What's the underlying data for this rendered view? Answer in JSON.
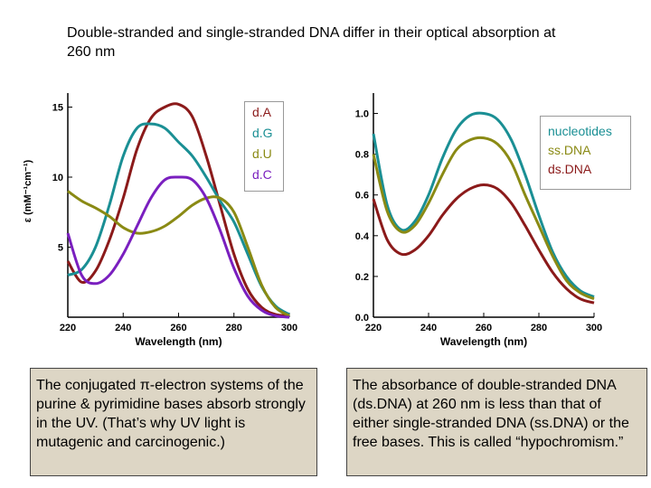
{
  "title": "Double-stranded and single-stranded DNA differ in their optical absorption at 260 nm",
  "chart_data": [
    {
      "type": "line",
      "xlabel": "Wavelength (nm)",
      "ylabel": "ε (mM⁻¹cm⁻¹)",
      "xlim": [
        220,
        300
      ],
      "ylim": [
        0,
        16
      ],
      "xticks": [
        "220",
        "240",
        "260",
        "280",
        "300"
      ],
      "yticks": [
        "5",
        "10",
        "15"
      ],
      "series": [
        {
          "name": "dA",
          "color": "#8b1a1a",
          "x": [
            220,
            225,
            230,
            235,
            240,
            245,
            250,
            255,
            260,
            265,
            270,
            275,
            280,
            285,
            290,
            295,
            300
          ],
          "y": [
            4,
            2.5,
            3.3,
            5.5,
            8.5,
            12,
            14.2,
            15,
            15.2,
            14.3,
            11.5,
            8,
            4.5,
            2,
            0.7,
            0.2,
            0.1
          ]
        },
        {
          "name": "dG",
          "color": "#1a8f94",
          "x": [
            220,
            225,
            230,
            235,
            240,
            245,
            250,
            255,
            260,
            265,
            270,
            275,
            280,
            285,
            290,
            295,
            300
          ],
          "y": [
            3,
            3.4,
            5,
            8,
            11.5,
            13.5,
            13.8,
            13.5,
            12.5,
            11.5,
            10,
            8.3,
            6.8,
            4.5,
            2.2,
            0.8,
            0.2
          ]
        },
        {
          "name": "dU",
          "color": "#8a8a14",
          "x": [
            220,
            225,
            230,
            235,
            240,
            245,
            250,
            255,
            260,
            265,
            270,
            275,
            280,
            285,
            290,
            295,
            300
          ],
          "y": [
            9,
            8.3,
            7.8,
            7.2,
            6.4,
            6,
            6.1,
            6.5,
            7.2,
            8,
            8.5,
            8.5,
            7.5,
            5,
            2.3,
            0.7,
            0.1
          ]
        },
        {
          "name": "dC",
          "color": "#7a1fbf",
          "x": [
            220,
            225,
            230,
            235,
            240,
            245,
            250,
            255,
            260,
            265,
            270,
            275,
            280,
            285,
            290,
            295,
            300
          ],
          "y": [
            6,
            3,
            2.4,
            3,
            4.5,
            6.5,
            8.5,
            9.8,
            10,
            9.8,
            8.5,
            6.2,
            3.5,
            1.5,
            0.5,
            0.1,
            0
          ]
        }
      ],
      "legend": [
        "d.A",
        "d.G",
        "d.U",
        "d.C"
      ]
    },
    {
      "type": "line",
      "xlabel": "Wavelength (nm)",
      "ylabel": "",
      "xlim": [
        220,
        300
      ],
      "ylim": [
        0,
        1.1
      ],
      "xticks": [
        "220",
        "240",
        "260",
        "280",
        "300"
      ],
      "yticks": [
        "0.0",
        "0.2",
        "0.4",
        "0.6",
        "0.8",
        "1.0"
      ],
      "series": [
        {
          "name": "nucleotides",
          "color": "#1a8f94",
          "x": [
            220,
            225,
            230,
            235,
            240,
            245,
            250,
            255,
            260,
            265,
            270,
            275,
            280,
            285,
            290,
            295,
            300
          ],
          "y": [
            0.9,
            0.55,
            0.43,
            0.47,
            0.6,
            0.78,
            0.92,
            0.99,
            1.0,
            0.97,
            0.87,
            0.7,
            0.5,
            0.32,
            0.2,
            0.13,
            0.1
          ]
        },
        {
          "name": "ss.DNA",
          "color": "#8a8a14",
          "x": [
            220,
            225,
            230,
            235,
            240,
            245,
            250,
            255,
            260,
            265,
            270,
            275,
            280,
            285,
            290,
            295,
            300
          ],
          "y": [
            0.8,
            0.52,
            0.42,
            0.45,
            0.56,
            0.7,
            0.82,
            0.87,
            0.88,
            0.85,
            0.76,
            0.6,
            0.45,
            0.3,
            0.18,
            0.12,
            0.09
          ]
        },
        {
          "name": "ds.DNA",
          "color": "#8b1a1a",
          "x": [
            220,
            225,
            230,
            235,
            240,
            245,
            250,
            255,
            260,
            265,
            270,
            275,
            280,
            285,
            290,
            295,
            300
          ],
          "y": [
            0.58,
            0.38,
            0.31,
            0.33,
            0.4,
            0.5,
            0.58,
            0.63,
            0.65,
            0.63,
            0.56,
            0.45,
            0.33,
            0.22,
            0.14,
            0.09,
            0.07
          ]
        }
      ],
      "legend": [
        "nucleotides",
        "ss.DNA",
        "ds.DNA"
      ]
    }
  ],
  "textbox_left": "The conjugated π-electron systems of the purine & pyrimidine bases absorb strongly in the UV.  (That’s why UV light is mutagenic and carcinogenic.)",
  "textbox_right": "The absorbance of double-stranded DNA (ds.DNA) at 260 nm is less than that of either single-stranded DNA (ss.DNA) or the free bases.  This is called “hypochromism.”"
}
